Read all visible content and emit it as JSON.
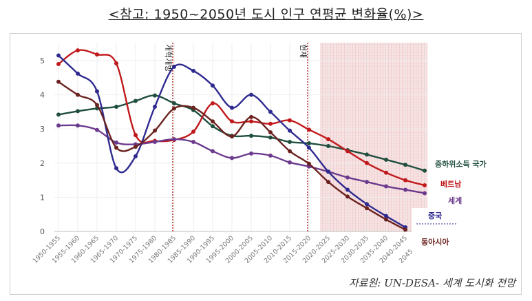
{
  "title": "<참고: 1950~2050년 도시 인구 연평균 변화율(%)>",
  "source": "자료원: UN-DESA- 세계 도시화 전망",
  "chart_data": {
    "type": "line",
    "ylim": [
      0,
      5.6
    ],
    "yticks": [
      0,
      1,
      2,
      3,
      4,
      5
    ],
    "categories": [
      "1950-1955",
      "1955-1960",
      "1960-1965",
      "1965-1970",
      "1970-1975",
      "1975-1980",
      "1980-1985",
      "1985-1990",
      "1990-1995",
      "1995-2000",
      "2000-2005",
      "2005-2010",
      "2010-2015",
      "2015-2020",
      "2020-2025",
      "2025-2030",
      "2030-2035",
      "2035-2040",
      "2040-2045",
      "2045-2050"
    ],
    "annotations": [
      {
        "label": "개혁개방",
        "category": "1980-1985"
      },
      {
        "label": "현재",
        "category": "2015-2020"
      }
    ],
    "projection_start": "2020-2025",
    "series": [
      {
        "name": "중하위소득 국가",
        "color": "#1f4e3d",
        "values": [
          3.42,
          3.52,
          3.6,
          3.65,
          3.82,
          3.98,
          3.75,
          3.55,
          3.08,
          2.8,
          2.8,
          2.75,
          2.62,
          2.58,
          2.5,
          2.38,
          2.25,
          2.1,
          1.95,
          1.78
        ]
      },
      {
        "name": "베트남",
        "color": "#c0191c",
        "values": [
          4.9,
          5.3,
          5.18,
          4.92,
          2.82,
          2.65,
          2.68,
          2.92,
          3.75,
          3.22,
          3.22,
          3.15,
          3.25,
          2.98,
          2.7,
          2.35,
          2.0,
          1.72,
          1.5,
          1.35
        ]
      },
      {
        "name": "세계",
        "color": "#6b3a8e",
        "values": [
          3.1,
          3.1,
          2.97,
          2.6,
          2.55,
          2.62,
          2.7,
          2.62,
          2.35,
          2.15,
          2.28,
          2.22,
          2.02,
          1.9,
          1.75,
          1.58,
          1.45,
          1.32,
          1.22,
          1.12
        ]
      },
      {
        "name": "중국",
        "color": "#2e2a8f",
        "values": [
          5.15,
          4.62,
          4.1,
          1.85,
          2.2,
          3.65,
          4.82,
          4.7,
          4.27,
          3.62,
          4.0,
          3.5,
          2.95,
          2.45,
          1.75,
          1.22,
          0.8,
          0.45,
          0.12,
          null
        ]
      },
      {
        "name": "동아시아",
        "color": "#6b2320",
        "values": [
          4.38,
          4.0,
          3.7,
          2.45,
          2.48,
          2.95,
          3.6,
          3.62,
          3.22,
          2.78,
          3.35,
          2.9,
          2.35,
          1.98,
          1.45,
          1.02,
          0.68,
          0.35,
          0.05,
          null
        ]
      }
    ]
  }
}
